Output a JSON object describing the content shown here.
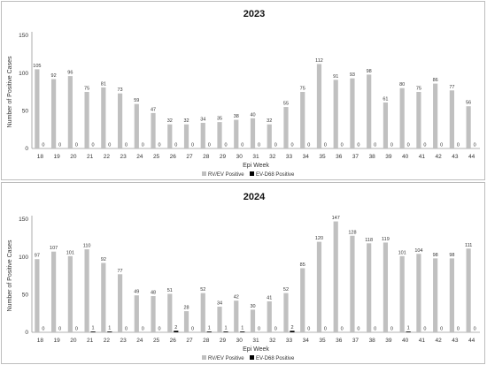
{
  "chart_data": [
    {
      "type": "bar",
      "title": "2023",
      "xlabel": "Epi Week",
      "ylabel": "Number of Positive Cases",
      "ylim": [
        0,
        150
      ],
      "yticks": [
        0,
        50,
        100,
        150
      ],
      "grid": false,
      "legend_position": "bottom",
      "categories": [
        "18",
        "19",
        "20",
        "21",
        "22",
        "23",
        "24",
        "25",
        "26",
        "27",
        "28",
        "29",
        "30",
        "31",
        "32",
        "33",
        "34",
        "35",
        "36",
        "37",
        "38",
        "39",
        "40",
        "41",
        "42",
        "43",
        "44"
      ],
      "series": [
        {
          "name": "RV/EV Positive",
          "color": "#c0c0c0",
          "values": [
            105,
            92,
            96,
            75,
            81,
            73,
            59,
            47,
            32,
            32,
            34,
            35,
            38,
            40,
            32,
            55,
            75,
            112,
            91,
            93,
            98,
            61,
            80,
            75,
            86,
            77,
            56
          ]
        },
        {
          "name": "EV-D68 Positive",
          "color": "#000000",
          "values": [
            0,
            0,
            0,
            0,
            0,
            0,
            0,
            0,
            0,
            0,
            0,
            0,
            0,
            0,
            0,
            0,
            0,
            0,
            0,
            0,
            0,
            0,
            0,
            0,
            0,
            0,
            0
          ]
        }
      ]
    },
    {
      "type": "bar",
      "title": "2024",
      "xlabel": "Epi Week",
      "ylabel": "Number of Positive Cases",
      "ylim": [
        0,
        150
      ],
      "yticks": [
        0,
        50,
        100,
        150
      ],
      "grid": false,
      "legend_position": "bottom",
      "categories": [
        "18",
        "19",
        "20",
        "21",
        "22",
        "23",
        "24",
        "25",
        "26",
        "27",
        "28",
        "29",
        "30",
        "31",
        "32",
        "33",
        "34",
        "35",
        "36",
        "37",
        "38",
        "39",
        "40",
        "41",
        "42",
        "43",
        "44"
      ],
      "series": [
        {
          "name": "RV/EV Positive",
          "color": "#c0c0c0",
          "values": [
            97,
            107,
            101,
            110,
            92,
            77,
            49,
            48,
            51,
            28,
            52,
            34,
            42,
            30,
            41,
            52,
            85,
            120,
            147,
            128,
            118,
            119,
            101,
            104,
            98,
            98,
            111
          ]
        },
        {
          "name": "EV-D68 Positive",
          "color": "#000000",
          "values": [
            0,
            0,
            0,
            1,
            1,
            0,
            0,
            0,
            2,
            0,
            1,
            1,
            1,
            0,
            0,
            2,
            0,
            0,
            0,
            0,
            0,
            0,
            1,
            0,
            0,
            0,
            0
          ]
        }
      ]
    }
  ]
}
